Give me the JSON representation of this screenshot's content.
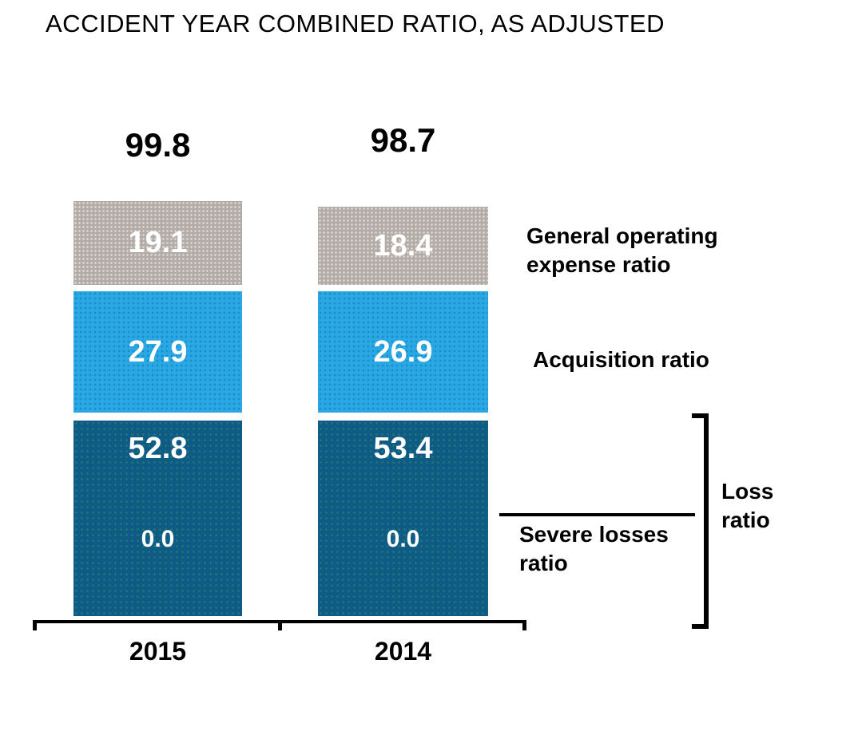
{
  "title": "ACCIDENT YEAR COMBINED RATIO, AS ADJUSTED",
  "chart_data": {
    "type": "bar",
    "stacked": true,
    "orientation": "vertical",
    "title": "ACCIDENT YEAR COMBINED RATIO, AS ADJUSTED",
    "categories": [
      "2015",
      "2014"
    ],
    "totals": {
      "values": [
        99.8,
        98.7
      ],
      "display": [
        "99.8",
        "98.7"
      ]
    },
    "series": [
      {
        "name": "Loss ratio",
        "values": [
          52.8,
          53.4
        ],
        "display": [
          "52.8",
          "53.4"
        ],
        "color": "#0e5c85"
      },
      {
        "name": "Severe losses ratio",
        "values": [
          0.0,
          0.0
        ],
        "display": [
          "0.0",
          "0.0"
        ],
        "color": "#0e5c85",
        "note": "shown inside the Loss ratio segment"
      },
      {
        "name": "Acquisition ratio",
        "values": [
          27.9,
          26.9
        ],
        "display": [
          "27.9",
          "26.9"
        ],
        "color": "#29a8e3"
      },
      {
        "name": "General operating expense ratio",
        "values": [
          19.1,
          18.4
        ],
        "display": [
          "19.1",
          "18.4"
        ],
        "color": "#b3aba6"
      }
    ],
    "legend_position": "right",
    "grid": false,
    "axes": {
      "x_ticks": [
        "2015",
        "2014"
      ],
      "y_axis_visible": false
    }
  },
  "annotations": {
    "general_operating": "General operating expense ratio",
    "acquisition": "Acquisition ratio",
    "severe_losses": "Severe losses ratio",
    "loss_ratio": "Loss ratio"
  },
  "colors": {
    "gray_segment": "#b3aba6",
    "light_blue_segment": "#29a8e3",
    "dark_blue_segment": "#0e5c85",
    "text_black": "#000000",
    "text_white": "#ffffff",
    "background": "#ffffff"
  }
}
